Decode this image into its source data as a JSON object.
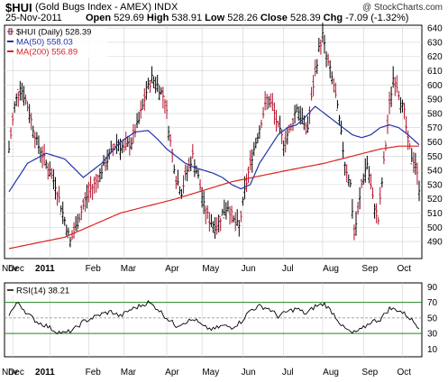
{
  "header": {
    "ticker": "$HUI",
    "name": "(Gold Bugs Index - AMEX)",
    "exchange": "INDX",
    "copyright": "@ StockCharts.com",
    "date": "25-Nov-2011",
    "open_label": "Open",
    "open": "529.69",
    "high_label": "High",
    "high": "538.91",
    "low_label": "Low",
    "low": "528.26",
    "close_label": "Close",
    "close": "528.39",
    "chg_label": "Chg",
    "chg": "-7.09 (-1.32%)"
  },
  "chart_data": [
    {
      "type": "bar",
      "legend": [
        {
          "label": "$HUI (Daily) 528.39",
          "color": "#7a1530"
        },
        {
          "label": "MA(50) 558.03",
          "color": "#2233aa"
        },
        {
          "label": "MA(200) 556.89",
          "color": "#dd2222"
        }
      ],
      "y_ticks": [
        490,
        500,
        510,
        520,
        530,
        540,
        550,
        560,
        570,
        580,
        590,
        600,
        610,
        620,
        630,
        640
      ],
      "ylim": [
        478,
        642
      ],
      "x_ticks": [
        "Dec",
        "2011",
        "Feb",
        "Mar",
        "Apr",
        "May",
        "Jun",
        "Jul",
        "Aug",
        "Sep",
        "Oct",
        "Nov"
      ],
      "price_anchors": [
        [
          0,
          555
        ],
        [
          3,
          585
        ],
        [
          6,
          600
        ],
        [
          10,
          585
        ],
        [
          15,
          560
        ],
        [
          20,
          545
        ],
        [
          25,
          530
        ],
        [
          30,
          505
        ],
        [
          33,
          490
        ],
        [
          36,
          500
        ],
        [
          40,
          515
        ],
        [
          43,
          525
        ],
        [
          46,
          530
        ],
        [
          50,
          540
        ],
        [
          54,
          550
        ],
        [
          58,
          560
        ],
        [
          62,
          555
        ],
        [
          66,
          560
        ],
        [
          70,
          575
        ],
        [
          74,
          595
        ],
        [
          77,
          605
        ],
        [
          80,
          600
        ],
        [
          84,
          590
        ],
        [
          87,
          560
        ],
        [
          90,
          535
        ],
        [
          93,
          525
        ],
        [
          96,
          540
        ],
        [
          99,
          550
        ],
        [
          102,
          535
        ],
        [
          105,
          515
        ],
        [
          108,
          505
        ],
        [
          112,
          500
        ],
        [
          115,
          510
        ],
        [
          118,
          515
        ],
        [
          121,
          505
        ],
        [
          124,
          500
        ],
        [
          127,
          525
        ],
        [
          130,
          545
        ],
        [
          133,
          560
        ],
        [
          136,
          575
        ],
        [
          139,
          590
        ],
        [
          142,
          585
        ],
        [
          145,
          570
        ],
        [
          148,
          560
        ],
        [
          152,
          570
        ],
        [
          155,
          585
        ],
        [
          158,
          575
        ],
        [
          161,
          570
        ],
        [
          164,
          600
        ],
        [
          167,
          625
        ],
        [
          169,
          635
        ],
        [
          171,
          620
        ],
        [
          173,
          610
        ],
        [
          175,
          600
        ],
        [
          178,
          575
        ],
        [
          181,
          545
        ],
        [
          184,
          530
        ],
        [
          186,
          495
        ],
        [
          188,
          510
        ],
        [
          190,
          530
        ],
        [
          193,
          545
        ],
        [
          196,
          520
        ],
        [
          199,
          505
        ],
        [
          202,
          545
        ],
        [
          205,
          585
        ],
        [
          207,
          605
        ],
        [
          209,
          600
        ],
        [
          211,
          590
        ],
        [
          213,
          580
        ],
        [
          215,
          560
        ],
        [
          217,
          550
        ],
        [
          219,
          545
        ],
        [
          221,
          528
        ]
      ],
      "ma50_anchors": [
        [
          0,
          525
        ],
        [
          10,
          545
        ],
        [
          20,
          552
        ],
        [
          30,
          548
        ],
        [
          40,
          535
        ],
        [
          50,
          545
        ],
        [
          60,
          560
        ],
        [
          68,
          567
        ],
        [
          75,
          568
        ],
        [
          80,
          562
        ],
        [
          85,
          555
        ],
        [
          90,
          550
        ],
        [
          95,
          545
        ],
        [
          100,
          542
        ],
        [
          105,
          540
        ],
        [
          110,
          538
        ],
        [
          115,
          535
        ],
        [
          120,
          530
        ],
        [
          125,
          527
        ],
        [
          130,
          530
        ],
        [
          135,
          545
        ],
        [
          140,
          555
        ],
        [
          145,
          565
        ],
        [
          150,
          570
        ],
        [
          155,
          572
        ],
        [
          160,
          578
        ],
        [
          165,
          585
        ],
        [
          170,
          580
        ],
        [
          175,
          575
        ],
        [
          180,
          570
        ],
        [
          185,
          565
        ],
        [
          190,
          563
        ],
        [
          195,
          565
        ],
        [
          200,
          570
        ],
        [
          205,
          572
        ],
        [
          210,
          570
        ],
        [
          215,
          565
        ],
        [
          221,
          558
        ]
      ],
      "ma200_anchors": [
        [
          0,
          485
        ],
        [
          30,
          493
        ],
        [
          60,
          510
        ],
        [
          90,
          520
        ],
        [
          120,
          532
        ],
        [
          150,
          540
        ],
        [
          170,
          545
        ],
        [
          185,
          550
        ],
        [
          200,
          555
        ],
        [
          210,
          557
        ],
        [
          221,
          557
        ]
      ]
    },
    {
      "type": "line",
      "title": "RSI(14) 38.21",
      "y_ticks": [
        10,
        30,
        50,
        70,
        90
      ],
      "ylim": [
        0,
        95
      ],
      "ref_lines": [
        70,
        30
      ],
      "mid_line": 50,
      "rsi_anchors": [
        [
          0,
          55
        ],
        [
          5,
          70
        ],
        [
          10,
          55
        ],
        [
          15,
          45
        ],
        [
          20,
          40
        ],
        [
          25,
          33
        ],
        [
          30,
          30
        ],
        [
          35,
          35
        ],
        [
          40,
          45
        ],
        [
          45,
          50
        ],
        [
          50,
          55
        ],
        [
          55,
          58
        ],
        [
          60,
          52
        ],
        [
          65,
          60
        ],
        [
          70,
          65
        ],
        [
          75,
          70
        ],
        [
          80,
          62
        ],
        [
          85,
          50
        ],
        [
          90,
          40
        ],
        [
          95,
          45
        ],
        [
          100,
          48
        ],
        [
          105,
          38
        ],
        [
          110,
          35
        ],
        [
          115,
          40
        ],
        [
          120,
          38
        ],
        [
          125,
          45
        ],
        [
          130,
          60
        ],
        [
          135,
          65
        ],
        [
          140,
          62
        ],
        [
          145,
          52
        ],
        [
          150,
          58
        ],
        [
          155,
          62
        ],
        [
          160,
          55
        ],
        [
          165,
          65
        ],
        [
          170,
          68
        ],
        [
          175,
          55
        ],
        [
          180,
          38
        ],
        [
          185,
          30
        ],
        [
          190,
          35
        ],
        [
          195,
          45
        ],
        [
          200,
          48
        ],
        [
          205,
          62
        ],
        [
          210,
          60
        ],
        [
          215,
          52
        ],
        [
          221,
          38
        ]
      ]
    }
  ]
}
